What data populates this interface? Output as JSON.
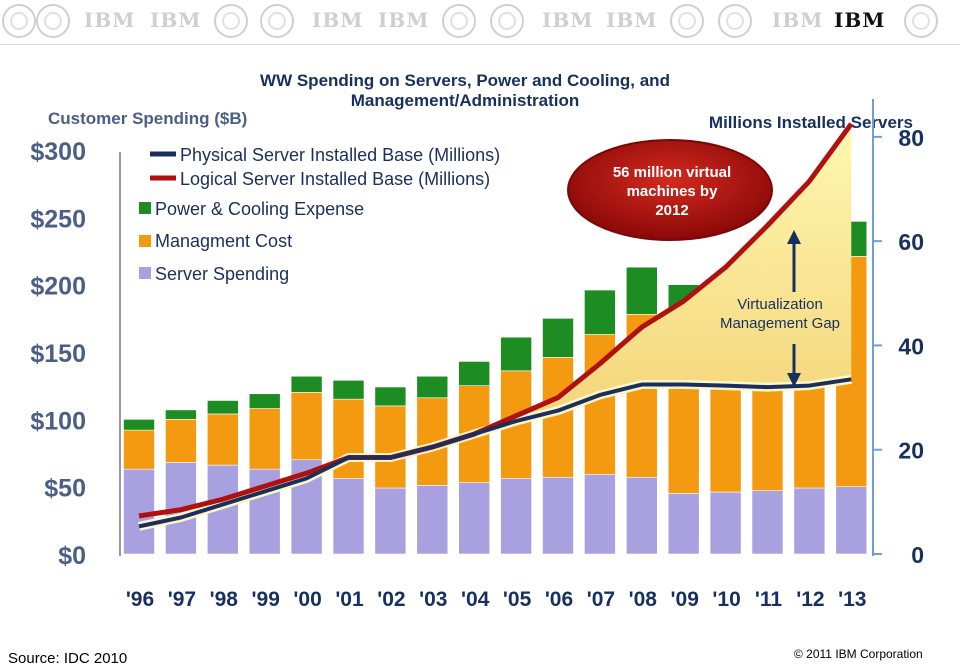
{
  "banner": {
    "logos": [
      "IBM",
      "IBM",
      "IBM",
      "IBM",
      "IBM",
      "IBM",
      "IBM"
    ],
    "main_logo": "IBM"
  },
  "footer": {
    "source": "Source: IDC 2010",
    "copyright": "© 2011 IBM Corporation"
  },
  "callout": {
    "text_lines": [
      "56 million virtual",
      "machines by",
      "2012"
    ],
    "color": "#b01010"
  },
  "gap_annotation": [
    "Virtualization",
    "Management Gap"
  ],
  "chart_data": {
    "type": "bar",
    "title_lines": [
      "WW Spending on Servers, Power and Cooling, and",
      "Management/Administration"
    ],
    "ylabel": "Customer Spending ($B)",
    "y2label": "Millions Installed Servers",
    "categories": [
      "'96",
      "'97",
      "'98",
      "'99",
      "'00",
      "'01",
      "'02",
      "'03",
      "'04",
      "'05",
      "'06",
      "'07",
      "'08",
      "'09",
      "'10",
      "'11",
      "'12",
      "'13"
    ],
    "ylim": [
      0,
      300
    ],
    "yticks": [
      "$0",
      "$50",
      "$100",
      "$150",
      "$200",
      "$250",
      "$300"
    ],
    "y2lim": [
      0,
      84
    ],
    "y2ticks": [
      "0",
      "20",
      "40",
      "60",
      "80"
    ],
    "series": [
      {
        "name": "Server Spending",
        "color": "#a9a0e0",
        "values": [
          63,
          68,
          66,
          63,
          70,
          56,
          49,
          51,
          53,
          56,
          57,
          59,
          57,
          45,
          46,
          47,
          49,
          50
        ]
      },
      {
        "name": "Managment Cost",
        "color": "#f39a10",
        "values": [
          29,
          32,
          38,
          45,
          50,
          59,
          61,
          65,
          72,
          80,
          89,
          104,
          121,
          136,
          142,
          154,
          167,
          171
        ]
      },
      {
        "name": "Power & Cooling Expense",
        "color": "#1d8c22",
        "values": [
          8,
          7,
          10,
          11,
          12,
          14,
          14,
          16,
          18,
          25,
          29,
          33,
          35,
          19,
          17,
          0,
          0,
          26
        ]
      }
    ],
    "lines": [
      {
        "name": "Physical Server Installed Base (Millions)",
        "color": "#1a2f5e",
        "values": [
          5.3,
          7.0,
          9.5,
          12.0,
          14.5,
          18.5,
          18.5,
          20.5,
          23.0,
          25.5,
          27.5,
          30.5,
          32.5,
          32.5,
          32.3,
          32.0,
          32.3,
          33.5
        ]
      },
      {
        "name": "Logical Server Installed Base (Millions)",
        "color": "#b01010",
        "values": [
          7.3,
          8.5,
          10.5,
          13.0,
          15.5,
          18.5,
          18.5,
          20.5,
          23.0,
          26.5,
          30.0,
          36.5,
          43.5,
          48.5,
          55.0,
          63.0,
          71.5,
          82.5
        ]
      }
    ],
    "legend_position": "top-left"
  }
}
